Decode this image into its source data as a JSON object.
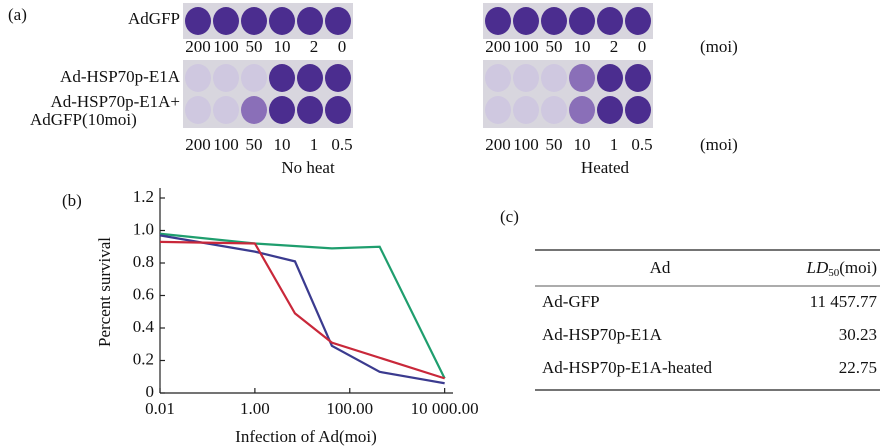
{
  "panel_a": {
    "label": "(a)",
    "row_labels": [
      "AdGFP",
      "Ad-HSP70p-E1A",
      "Ad-HSP70p-E1A+",
      "AdGFP(10moi)"
    ],
    "doses_top": [
      "200",
      "100",
      "50",
      "10",
      "2",
      "0"
    ],
    "doses_bottom": [
      "200",
      "100",
      "50",
      "10",
      "1",
      "0.5"
    ],
    "unit": "(moi)",
    "conditions": [
      "No heat",
      "Heated"
    ]
  },
  "chart_data": {
    "type": "line",
    "label": "(b)",
    "ylabel": "Percent survival",
    "xlabel": "Infection of Ad(moi)",
    "xscale": "log",
    "xlim": [
      0.01,
      15000
    ],
    "ylim": [
      0,
      1.2
    ],
    "xticks": [
      0.01,
      {
        "value": 1,
        "label": "1.00"
      },
      {
        "value": 100,
        "label": "100.00"
      },
      {
        "value": 10000,
        "label": "10 000.00"
      }
    ],
    "yticks": [
      0,
      0.2,
      0.4,
      0.6,
      0.8,
      {
        "value": 1,
        "label": "1.0"
      },
      1.2
    ],
    "series": [
      {
        "color": "#1f9e6e",
        "x": [
          0.01,
          1,
          42,
          427,
          10000
        ],
        "values": [
          0.98,
          0.92,
          0.89,
          0.9,
          0.09
        ]
      },
      {
        "color": "#3b3b8f",
        "x": [
          0.01,
          1,
          7,
          42,
          427,
          10000
        ],
        "values": [
          0.97,
          0.87,
          0.81,
          0.29,
          0.13,
          0.06
        ]
      },
      {
        "color": "#c9283a",
        "x": [
          0.01,
          1,
          7,
          42,
          10000
        ],
        "values": [
          0.93,
          0.92,
          0.49,
          0.31,
          0.09
        ]
      }
    ]
  },
  "panel_c": {
    "label": "(c)",
    "header": {
      "col1": "Ad",
      "col2_main": "LD",
      "col2_sub": "50",
      "col2_suffix": "(moi)"
    },
    "rows": [
      [
        "Ad-GFP",
        "11 457.77"
      ],
      [
        "Ad-HSP70p-E1A",
        "30.23"
      ],
      [
        "Ad-HSP70p-E1A-heated",
        "22.75"
      ]
    ]
  }
}
